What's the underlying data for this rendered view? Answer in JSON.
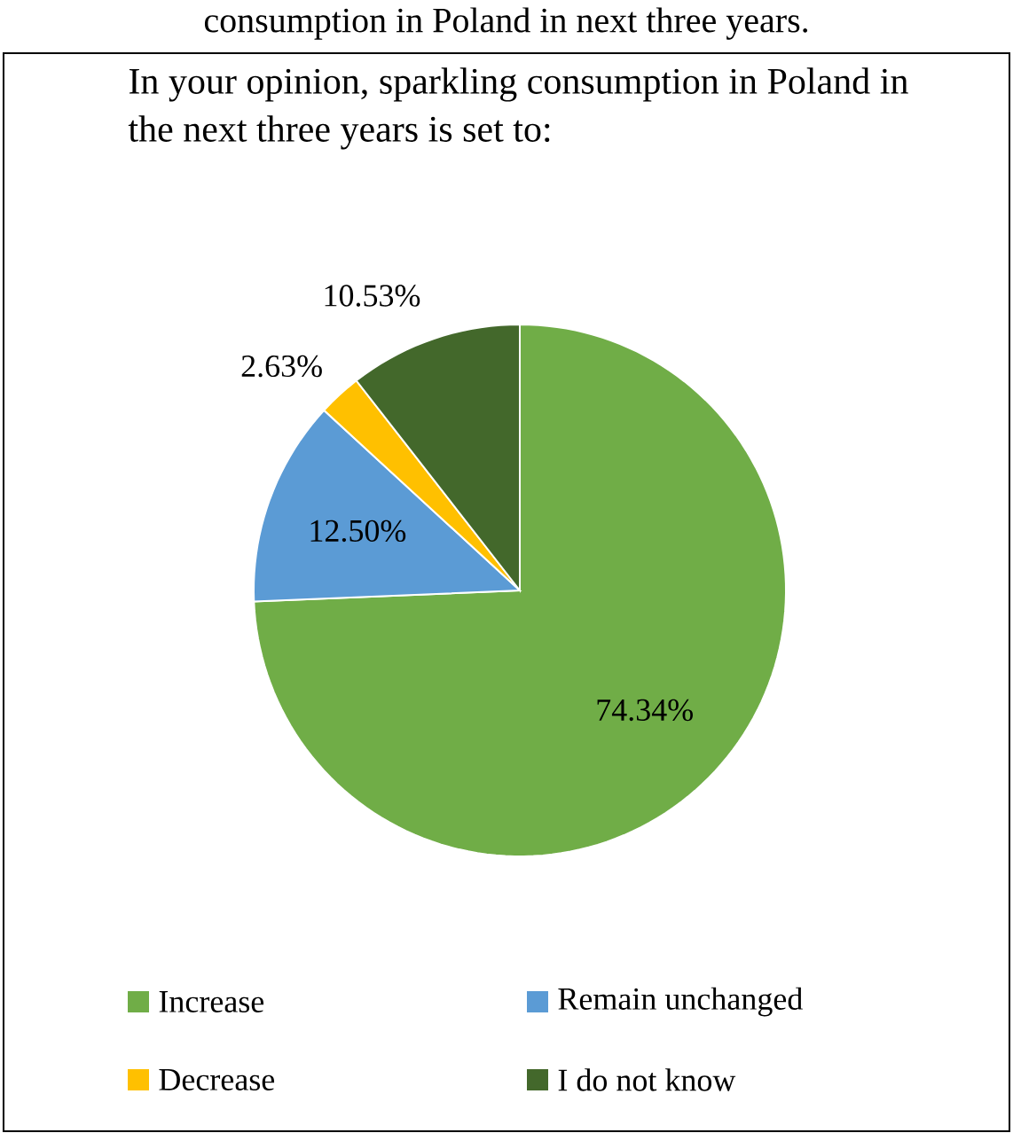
{
  "chart_data": {
    "type": "pie",
    "title": "In your opinion, sparkling consumption in Poland in the next three years is set to:",
    "annotations": [
      "consumption in Poland in next three years."
    ],
    "categories": [
      "Increase",
      "Remain unchanged",
      "Decrease",
      "I do not know"
    ],
    "values": [
      74.34,
      12.5,
      2.63,
      10.53
    ],
    "value_labels": [
      "74.34%",
      "12.50%",
      "2.63%",
      "10.53%"
    ],
    "colors": [
      "#70ad47",
      "#5b9bd5",
      "#ffc000",
      "#43682b"
    ],
    "legend": "bottom"
  }
}
